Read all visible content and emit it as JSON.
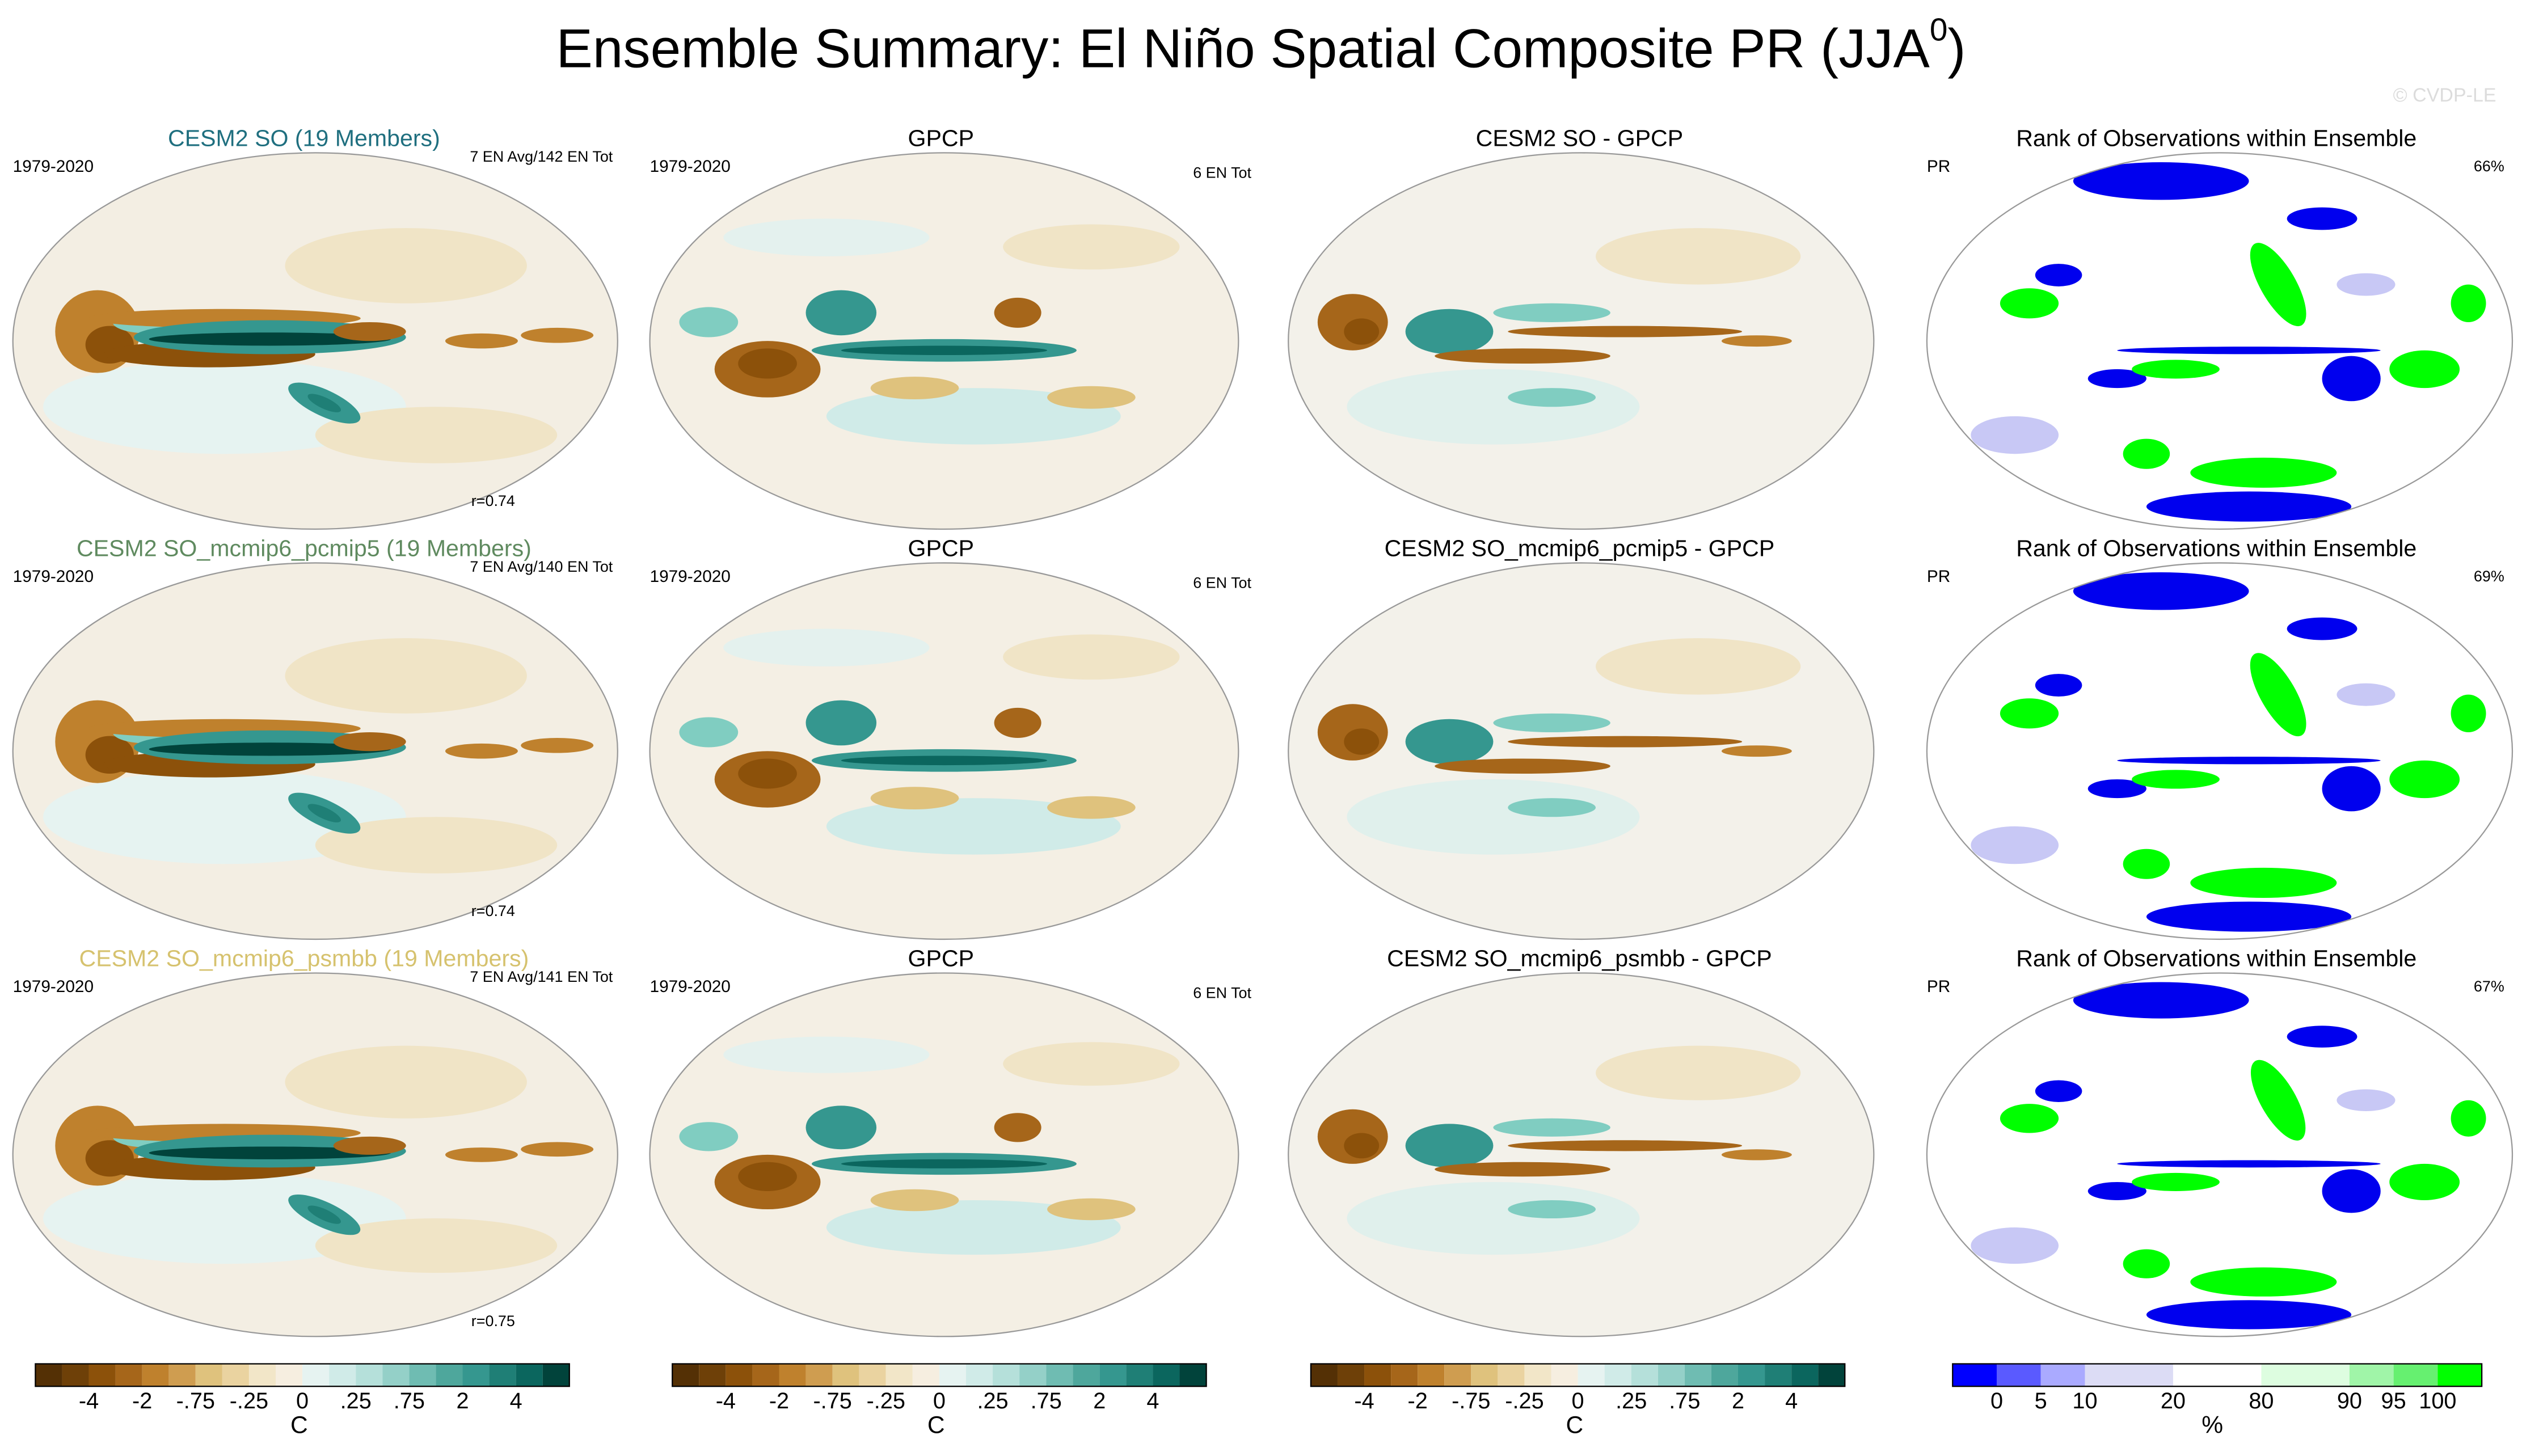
{
  "title": "Ensemble Summary: El Niño Spatial Composite PR (JJA",
  "title_sup": "0",
  "title_end": ")",
  "watermark": "© CVDP-LE",
  "rows": [
    {
      "panels": [
        {
          "title": "CESM2 SO (19 Members)",
          "title_color": "#1f6f7f",
          "left": "1979-2020",
          "right": "7 EN Avg/142 EN Tot",
          "bottom": "r=0.74"
        },
        {
          "title": "GPCP",
          "left": "1979-2020",
          "right": "6 EN Tot"
        },
        {
          "title": "CESM2 SO - GPCP"
        },
        {
          "title": "Rank of Observations within Ensemble",
          "left": "PR",
          "right": "66%"
        }
      ]
    },
    {
      "panels": [
        {
          "title": "CESM2 SO_mcmip6_pcmip5 (19 Members)",
          "title_color": "#5f8a5f",
          "left": "1979-2020",
          "right": "7 EN Avg/140 EN Tot",
          "bottom": "r=0.74"
        },
        {
          "title": "GPCP",
          "left": "1979-2020",
          "right": "6 EN Tot"
        },
        {
          "title": "CESM2 SO_mcmip6_pcmip5 - GPCP"
        },
        {
          "title": "Rank of Observations within Ensemble",
          "left": "PR",
          "right": "69%"
        }
      ]
    },
    {
      "panels": [
        {
          "title": "CESM2 SO_mcmip6_psmbb (19 Members)",
          "title_color": "#d6c26e",
          "left": "1979-2020",
          "right": "7 EN Avg/141 EN Tot",
          "bottom": "r=0.75"
        },
        {
          "title": "GPCP",
          "left": "1979-2020",
          "right": "6 EN Tot"
        },
        {
          "title": "CESM2 SO_mcmip6_psmbb - GPCP"
        },
        {
          "title": "Rank of Observations within Ensemble",
          "left": "PR",
          "right": "67%"
        }
      ]
    }
  ],
  "colorbars": [
    {
      "colors": [
        "#543005",
        "#6e4008",
        "#8c510a",
        "#a6661a",
        "#bf812d",
        "#cf9d50",
        "#dfc27d",
        "#ead3a0",
        "#f2e6c8",
        "#f6eee0",
        "#e6f3f1",
        "#d0ebe8",
        "#b5e0da",
        "#94d0c8",
        "#6fbcb2",
        "#4ea79c",
        "#35978f",
        "#1f7f76",
        "#0b665e",
        "#01433b"
      ],
      "labels": [
        "-4",
        "-2",
        "-.75",
        "-.25",
        "0",
        ".25",
        ".75",
        "2",
        "4"
      ],
      "unit": "C"
    },
    {
      "colors": [
        "#543005",
        "#6e4008",
        "#8c510a",
        "#a6661a",
        "#bf812d",
        "#cf9d50",
        "#dfc27d",
        "#ead3a0",
        "#f2e6c8",
        "#f6eee0",
        "#e6f3f1",
        "#d0ebe8",
        "#b5e0da",
        "#94d0c8",
        "#6fbcb2",
        "#4ea79c",
        "#35978f",
        "#1f7f76",
        "#0b665e",
        "#01433b"
      ],
      "labels": [
        "-4",
        "-2",
        "-.75",
        "-.25",
        "0",
        ".25",
        ".75",
        "2",
        "4"
      ],
      "unit": "C"
    },
    {
      "colors": [
        "#543005",
        "#6e4008",
        "#8c510a",
        "#a6661a",
        "#bf812d",
        "#cf9d50",
        "#dfc27d",
        "#ead3a0",
        "#f2e6c8",
        "#f6eee0",
        "#e6f3f1",
        "#d0ebe8",
        "#b5e0da",
        "#94d0c8",
        "#6fbcb2",
        "#4ea79c",
        "#35978f",
        "#1f7f76",
        "#0b665e",
        "#01433b"
      ],
      "labels": [
        "-4",
        "-2",
        "-.75",
        "-.25",
        "0",
        ".25",
        ".75",
        "2",
        "4"
      ],
      "unit": "C"
    },
    {
      "colors": [
        "#0000ff",
        "#5a5aff",
        "#aaaaff",
        "#dcdcf5",
        "#ffffff",
        "#ddfde0",
        "#a0f5a8",
        "#66f070",
        "#00ff00"
      ],
      "labels": [
        "0",
        "5",
        "10",
        "20",
        "80",
        "90",
        "95",
        "100"
      ],
      "unit": "%"
    }
  ]
}
